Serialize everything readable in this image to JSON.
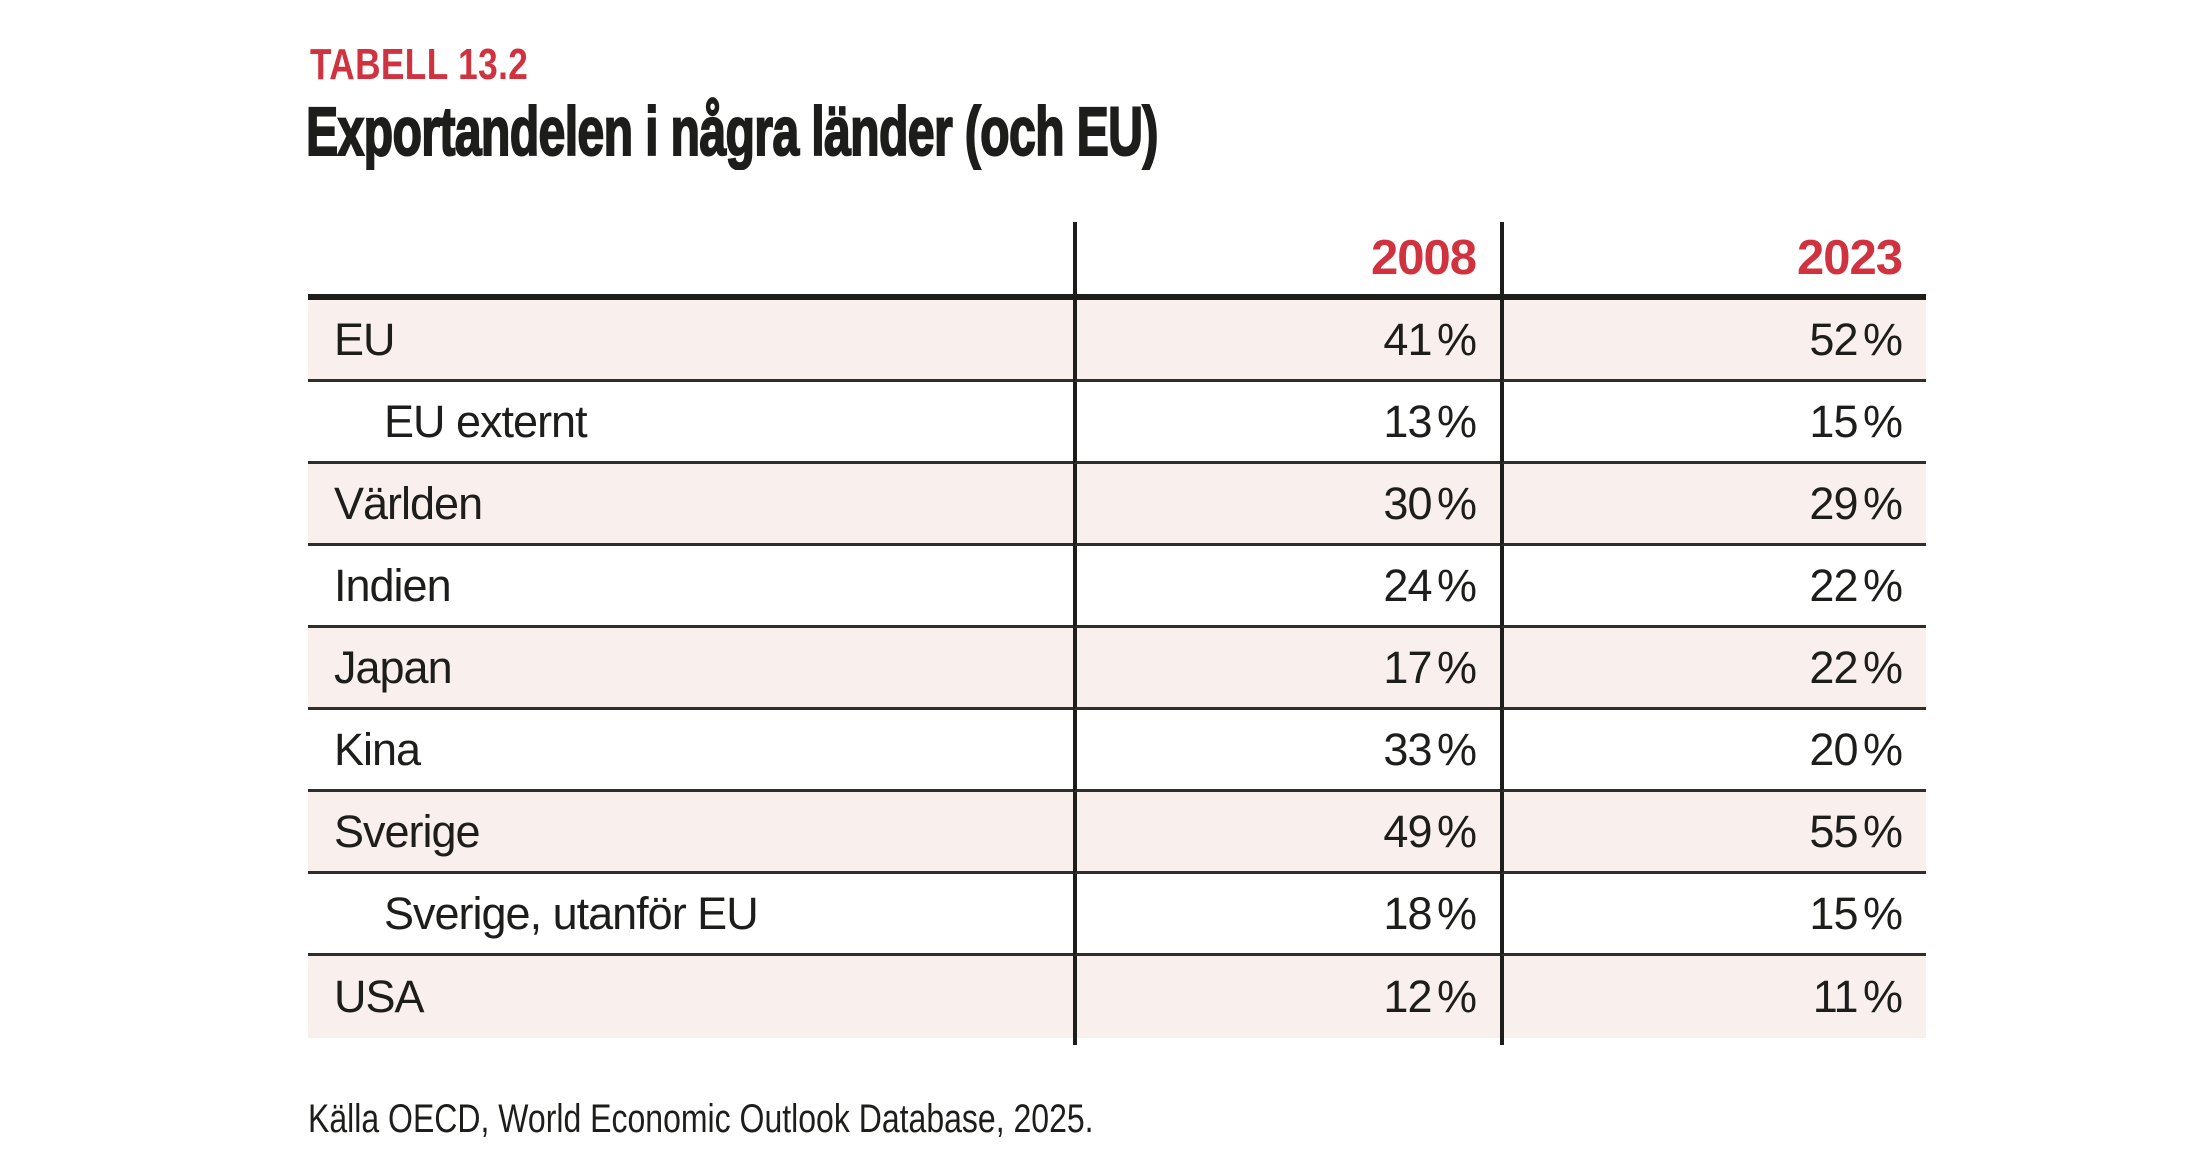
{
  "page": {
    "label": "TABELL 13.2",
    "title": "Exportandelen i några länder (och EU)",
    "source": "Källa OECD, World Economic Outlook Database, 2025."
  },
  "colors": {
    "accent_red": "#d0333f",
    "row_pink": "#f9efec",
    "ink": "#1d1d1b"
  },
  "chart_data": {
    "type": "table",
    "title": "Exportandelen i några länder (och EU)",
    "columns": [
      "",
      "2008",
      "2023"
    ],
    "unit": "%",
    "rows": [
      {
        "label": "EU",
        "indent": false,
        "values": [
          "41 %",
          "52 %"
        ]
      },
      {
        "label": "EU externt",
        "indent": true,
        "values": [
          "13 %",
          "15 %"
        ]
      },
      {
        "label": "Världen",
        "indent": false,
        "values": [
          "30 %",
          "29 %"
        ]
      },
      {
        "label": "Indien",
        "indent": false,
        "values": [
          "24 %",
          "22 %"
        ]
      },
      {
        "label": "Japan",
        "indent": false,
        "values": [
          "17 %",
          "22 %"
        ]
      },
      {
        "label": "Kina",
        "indent": false,
        "values": [
          "33 %",
          "20 %"
        ]
      },
      {
        "label": "Sverige",
        "indent": false,
        "values": [
          "49 %",
          "55 %"
        ]
      },
      {
        "label": "Sverige, utanför EU",
        "indent": true,
        "values": [
          "18 %",
          "15 %"
        ]
      },
      {
        "label": "USA",
        "indent": false,
        "values": [
          "12 %",
          "11 %"
        ]
      }
    ],
    "values_numeric": {
      "2008": [
        41,
        13,
        30,
        24,
        17,
        33,
        49,
        18,
        12
      ],
      "2023": [
        52,
        15,
        29,
        22,
        22,
        20,
        55,
        15,
        11
      ]
    }
  }
}
